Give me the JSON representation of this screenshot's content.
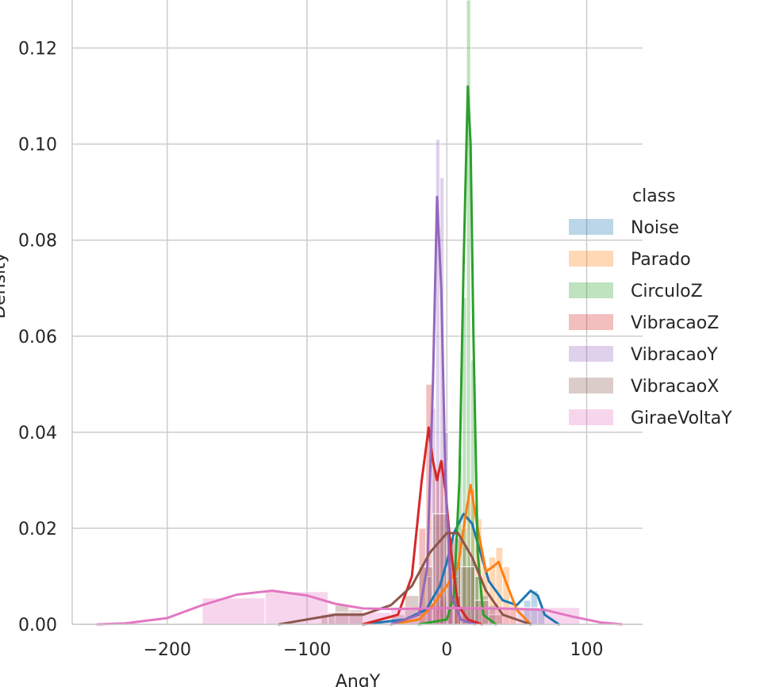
{
  "chart_data": {
    "type": "histogram-kde",
    "xlabel": "AngY",
    "ylabel": "Density",
    "xlim": [
      -268,
      140
    ],
    "ylim": [
      0,
      0.13
    ],
    "xticks": [
      -200,
      -100,
      0,
      100
    ],
    "xtick_labels": [
      "−200",
      "−100",
      "0",
      "100"
    ],
    "yticks": [
      0.0,
      0.02,
      0.04,
      0.06,
      0.08,
      0.1,
      0.12
    ],
    "ytick_labels": [
      "0.00",
      "0.02",
      "0.04",
      "0.06",
      "0.08",
      "0.10",
      "0.12"
    ],
    "grid": true,
    "legend": {
      "title": "class",
      "placement": "right"
    },
    "series": [
      {
        "name": "Noise",
        "color": "#1f77b4",
        "bins": [
          [
            -5,
            0,
            0.005
          ],
          [
            0,
            5,
            0.008
          ],
          [
            5,
            10,
            0.013
          ],
          [
            10,
            15,
            0.016
          ],
          [
            15,
            20,
            0.014
          ],
          [
            20,
            25,
            0.01
          ],
          [
            25,
            30,
            0.006
          ],
          [
            30,
            35,
            0.004
          ],
          [
            55,
            60,
            0.005
          ],
          [
            60,
            65,
            0.007
          ],
          [
            65,
            70,
            0.003
          ]
        ],
        "kde": [
          [
            -60,
            0
          ],
          [
            -30,
            0.001
          ],
          [
            -15,
            0.003
          ],
          [
            -5,
            0.008
          ],
          [
            0,
            0.013
          ],
          [
            5,
            0.019
          ],
          [
            12,
            0.023
          ],
          [
            18,
            0.021
          ],
          [
            25,
            0.014
          ],
          [
            30,
            0.009
          ],
          [
            40,
            0.005
          ],
          [
            50,
            0.004
          ],
          [
            60,
            0.007
          ],
          [
            65,
            0.006
          ],
          [
            70,
            0.002
          ],
          [
            80,
            0
          ]
        ]
      },
      {
        "name": "Parado",
        "color": "#ff7f0e",
        "bins": [
          [
            -10,
            -5,
            0.004
          ],
          [
            -5,
            0,
            0.006
          ],
          [
            0,
            5,
            0.01
          ],
          [
            5,
            10,
            0.012
          ],
          [
            10,
            15,
            0.02
          ],
          [
            15,
            20,
            0.028
          ],
          [
            20,
            25,
            0.022
          ],
          [
            25,
            30,
            0.012
          ],
          [
            30,
            35,
            0.014
          ],
          [
            35,
            40,
            0.016
          ],
          [
            40,
            45,
            0.012
          ],
          [
            45,
            50,
            0.004
          ]
        ],
        "kde": [
          [
            -40,
            0
          ],
          [
            -20,
            0.001
          ],
          [
            -10,
            0.004
          ],
          [
            0,
            0.008
          ],
          [
            8,
            0.012
          ],
          [
            13,
            0.022
          ],
          [
            17,
            0.029
          ],
          [
            22,
            0.02
          ],
          [
            28,
            0.011
          ],
          [
            33,
            0.012
          ],
          [
            37,
            0.013
          ],
          [
            42,
            0.009
          ],
          [
            50,
            0.003
          ],
          [
            60,
            0
          ]
        ]
      },
      {
        "name": "CirculoZ",
        "color": "#2ca02c",
        "bins": [
          [
            5,
            8,
            0.01
          ],
          [
            8,
            11,
            0.035
          ],
          [
            11,
            14,
            0.068
          ],
          [
            14,
            17,
            0.13
          ],
          [
            17,
            20,
            0.055
          ],
          [
            20,
            23,
            0.01
          ]
        ],
        "kde": [
          [
            -20,
            0
          ],
          [
            0,
            0.001
          ],
          [
            5,
            0.006
          ],
          [
            9,
            0.03
          ],
          [
            12,
            0.075
          ],
          [
            15,
            0.112
          ],
          [
            17,
            0.1
          ],
          [
            19,
            0.06
          ],
          [
            22,
            0.015
          ],
          [
            26,
            0.002
          ],
          [
            35,
            0
          ]
        ]
      },
      {
        "name": "VibracaoZ",
        "color": "#d62728",
        "bins": [
          [
            -20,
            -15,
            0.02
          ],
          [
            -15,
            -10,
            0.05
          ],
          [
            -10,
            -5,
            0.032
          ],
          [
            -5,
            0,
            0.034
          ],
          [
            0,
            5,
            0.018
          ],
          [
            5,
            10,
            0.006
          ]
        ],
        "kde": [
          [
            -60,
            0
          ],
          [
            -35,
            0.002
          ],
          [
            -25,
            0.01
          ],
          [
            -18,
            0.03
          ],
          [
            -13,
            0.041
          ],
          [
            -10,
            0.034
          ],
          [
            -7,
            0.03
          ],
          [
            -4,
            0.034
          ],
          [
            -1,
            0.028
          ],
          [
            3,
            0.015
          ],
          [
            8,
            0.004
          ],
          [
            15,
            0.001
          ],
          [
            25,
            0
          ]
        ]
      },
      {
        "name": "VibracaoY",
        "color": "#9467bd",
        "bins": [
          [
            -14,
            -11,
            0.01
          ],
          [
            -11,
            -8,
            0.045
          ],
          [
            -8,
            -5,
            0.101
          ],
          [
            -5,
            -2,
            0.093
          ],
          [
            -2,
            1,
            0.04
          ],
          [
            1,
            4,
            0.012
          ]
        ],
        "kde": [
          [
            -40,
            0
          ],
          [
            -20,
            0.002
          ],
          [
            -14,
            0.012
          ],
          [
            -10,
            0.05
          ],
          [
            -7,
            0.089
          ],
          [
            -4,
            0.07
          ],
          [
            -1,
            0.03
          ],
          [
            3,
            0.006
          ],
          [
            10,
            0.001
          ],
          [
            20,
            0
          ]
        ]
      },
      {
        "name": "VibracaoX",
        "color": "#8c564b",
        "bins": [
          [
            -90,
            -80,
            0.002
          ],
          [
            -80,
            -70,
            0.004
          ],
          [
            -70,
            -60,
            0.003
          ],
          [
            -40,
            -30,
            0.002
          ],
          [
            -30,
            -20,
            0.006
          ],
          [
            -20,
            -10,
            0.012
          ],
          [
            -10,
            0,
            0.023
          ],
          [
            0,
            10,
            0.018
          ],
          [
            10,
            20,
            0.012
          ],
          [
            20,
            30,
            0.005
          ],
          [
            30,
            40,
            0.002
          ]
        ],
        "kde": [
          [
            -120,
            0
          ],
          [
            -100,
            0.001
          ],
          [
            -80,
            0.002
          ],
          [
            -60,
            0.002
          ],
          [
            -40,
            0.004
          ],
          [
            -25,
            0.008
          ],
          [
            -12,
            0.015
          ],
          [
            0,
            0.019
          ],
          [
            8,
            0.019
          ],
          [
            18,
            0.014
          ],
          [
            28,
            0.007
          ],
          [
            40,
            0.002
          ],
          [
            60,
            0
          ]
        ]
      },
      {
        "name": "GiraeVoltaY",
        "color": "#e377c2",
        "bins": [
          [
            -175,
            -130,
            0.0055
          ],
          [
            -130,
            -85,
            0.0068
          ],
          [
            -85,
            -40,
            0.0025
          ],
          [
            -40,
            5,
            0.0035
          ],
          [
            5,
            50,
            0.0035
          ],
          [
            50,
            95,
            0.0035
          ]
        ],
        "kde": [
          [
            -250,
            0
          ],
          [
            -230,
            0.0002
          ],
          [
            -200,
            0.0013
          ],
          [
            -175,
            0.004
          ],
          [
            -150,
            0.0062
          ],
          [
            -125,
            0.007
          ],
          [
            -100,
            0.006
          ],
          [
            -80,
            0.0043
          ],
          [
            -60,
            0.0033
          ],
          [
            -40,
            0.0032
          ],
          [
            0,
            0.0034
          ],
          [
            40,
            0.0033
          ],
          [
            70,
            0.003
          ],
          [
            90,
            0.0016
          ],
          [
            110,
            0.0004
          ],
          [
            125,
            0
          ]
        ]
      }
    ]
  }
}
